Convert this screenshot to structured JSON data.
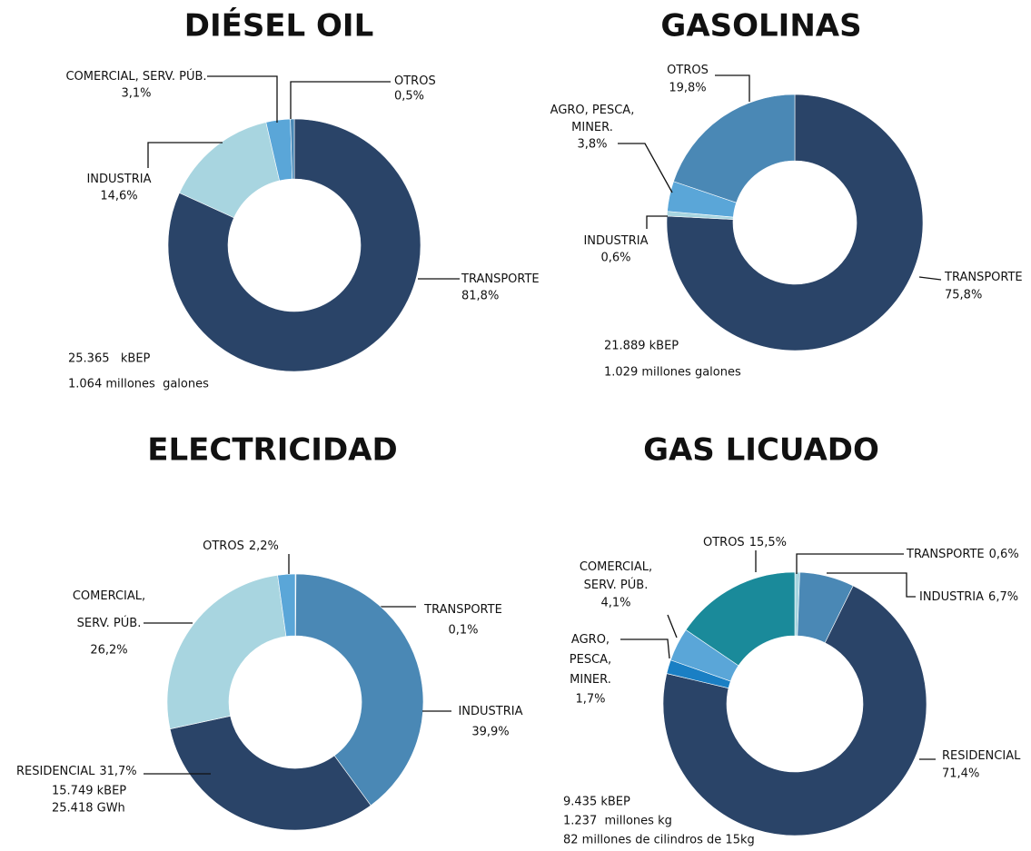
{
  "chart_data": [
    {
      "type": "pie",
      "title": "DIÉSEL OIL",
      "categories": [
        "TRANSPORTE",
        "INDUSTRIA",
        "COMERCIAL, SERV. PÚB.",
        "OTROS"
      ],
      "values": [
        81.8,
        14.6,
        3.1,
        0.5
      ],
      "value_labels": [
        "81,8%",
        "14,6%",
        "3,1%",
        "0,5%"
      ],
      "colors": [
        "#2a4468",
        "#a8d5e0",
        "#5aa6d8",
        "#4a88b5"
      ],
      "annotations": [
        "25.365   kBEP",
        "1.064 millones  galones"
      ]
    },
    {
      "type": "pie",
      "title": "GASOLINAS",
      "categories": [
        "TRANSPORTE",
        "INDUSTRIA",
        "AGRO, PESCA,\nMINER.",
        "OTROS"
      ],
      "values": [
        75.8,
        0.6,
        3.8,
        19.8
      ],
      "value_labels": [
        "75,8%",
        "0,6%",
        "3,8%",
        "19,8%"
      ],
      "colors": [
        "#2a4468",
        "#a8d5e0",
        "#5aa6d8",
        "#4a88b5"
      ],
      "annotations": [
        "21.889 kBEP",
        "1.029 millones galones"
      ]
    },
    {
      "type": "pie",
      "title": "ELECTRICIDAD",
      "categories": [
        "TRANSPORTE",
        "INDUSTRIA",
        "RESIDENCIAL",
        "COMERCIAL,\nSERV. PÚB.",
        "OTROS"
      ],
      "values": [
        0.1,
        39.9,
        31.7,
        26.2,
        2.2
      ],
      "value_labels": [
        "0,1%",
        "39,9%",
        "31,7%",
        "26,2%",
        "2,2%"
      ],
      "colors": [
        "#a8d5e0",
        "#4a88b5",
        "#2a4468",
        "#a8d5e0",
        "#5aa6d8"
      ],
      "annotations": [
        "15.749 kBEP",
        "25.418 GWh"
      ]
    },
    {
      "type": "pie",
      "title": "GAS LICUADO",
      "categories": [
        "TRANSPORTE",
        "INDUSTRIA",
        "RESIDENCIAL",
        "AGRO,\nPESCA,\nMINER.",
        "COMERCIAL,\nSERV. PÚB.",
        "OTROS"
      ],
      "values": [
        0.6,
        6.7,
        71.4,
        1.7,
        4.1,
        15.5
      ],
      "value_labels": [
        "0,6%",
        "6,7%",
        "71,4%",
        "1,7%",
        "4,1%",
        "15,5%"
      ],
      "colors": [
        "#a8d5e0",
        "#4a88b5",
        "#2a4468",
        "#1a7fc4",
        "#5aa6d8",
        "#1a8a9a"
      ],
      "annotations": [
        "9.435 kBEP",
        "1.237  millones kg",
        "82 millones de cilindros de 15kg"
      ]
    }
  ]
}
